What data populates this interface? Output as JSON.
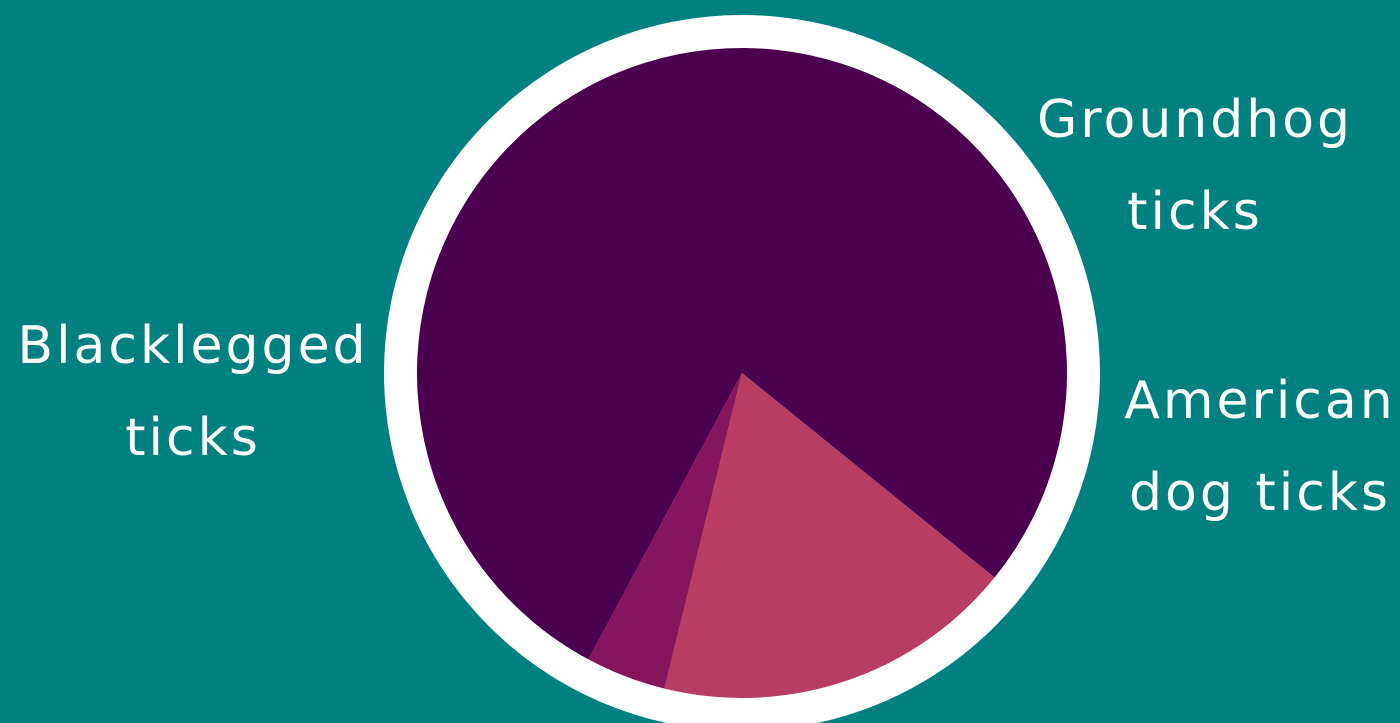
{
  "chart_data": {
    "type": "pie",
    "title": "",
    "slices": [
      {
        "label_lines": [
          "Blacklegged",
          "ticks"
        ],
        "value": 78,
        "color": "#4c0050"
      },
      {
        "label_lines": [
          "Groundhog",
          "ticks"
        ],
        "value": 4,
        "color": "#85155c"
      },
      {
        "label_lines": [
          "American",
          "dog ticks"
        ],
        "value": 18,
        "color": "#b83d62"
      }
    ],
    "legend": "none"
  },
  "colors": {
    "background": "#018080",
    "pie_border": "#ffffff"
  }
}
